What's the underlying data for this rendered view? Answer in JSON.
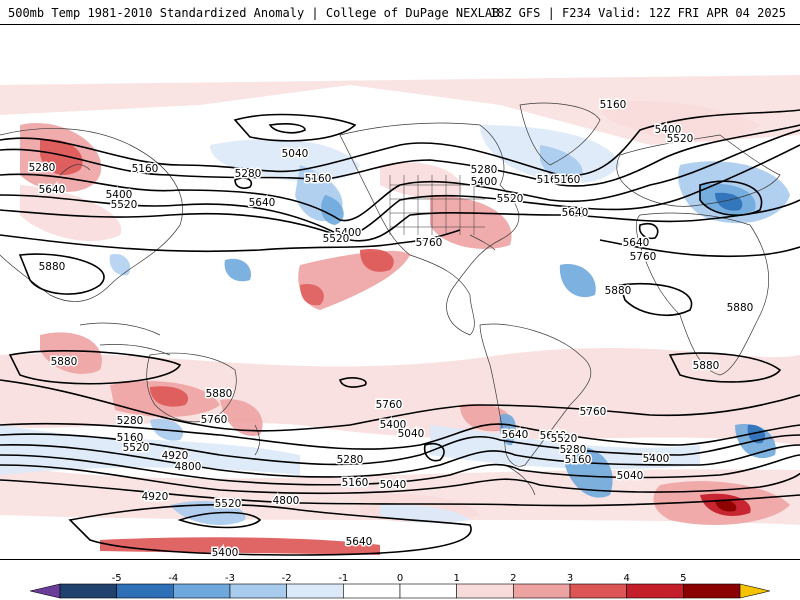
{
  "header": {
    "title_left": "500mb Temp 1981-2010 Standardized Anomaly | College of DuPage NEXLAB",
    "title_right": "18Z GFS | F234 Valid: 12Z FRI APR 04 2025"
  },
  "colors": {
    "contour": "#000000",
    "coast": "#3a3a3a",
    "scale": [
      "#6a3d9a",
      "#21416e",
      "#2d70b8",
      "#6fa8dc",
      "#a8cbee",
      "#dce9f8",
      "#ffffff",
      "#ffffff",
      "#f8dcdc",
      "#eea3a3",
      "#dd5555",
      "#c41e2a",
      "#8b0000",
      "#f5c300"
    ]
  },
  "colorbar": {
    "ticks": [
      "-5",
      "-4",
      "-3",
      "-2",
      "-1",
      "0",
      "1",
      "2",
      "3",
      "4",
      "5"
    ]
  },
  "contour_labels": [
    {
      "text": "5160"
    },
    {
      "text": "5400"
    },
    {
      "text": "5520"
    },
    {
      "text": "5160"
    },
    {
      "text": "5280"
    },
    {
      "text": "5640"
    },
    {
      "text": "5400"
    },
    {
      "text": "5520"
    },
    {
      "text": "5160"
    },
    {
      "text": "5040"
    },
    {
      "text": "5280"
    },
    {
      "text": "5160"
    },
    {
      "text": "5640"
    },
    {
      "text": "5400"
    },
    {
      "text": "5520"
    },
    {
      "text": "5760"
    },
    {
      "text": "5280"
    },
    {
      "text": "5400"
    },
    {
      "text": "5520"
    },
    {
      "text": "5640"
    },
    {
      "text": "5160"
    },
    {
      "text": "5640"
    },
    {
      "text": "5760"
    },
    {
      "text": "5880"
    },
    {
      "text": "5880"
    },
    {
      "text": "5880"
    },
    {
      "text": "5880"
    },
    {
      "text": "5880"
    },
    {
      "text": "5880"
    },
    {
      "text": "5760"
    },
    {
      "text": "5760"
    },
    {
      "text": "5760"
    },
    {
      "text": "5640"
    },
    {
      "text": "5280"
    },
    {
      "text": "5160"
    },
    {
      "text": "5520"
    },
    {
      "text": "5400"
    },
    {
      "text": "5040"
    },
    {
      "text": "4920"
    },
    {
      "text": "4800"
    },
    {
      "text": "4920"
    },
    {
      "text": "4800"
    },
    {
      "text": "5520"
    },
    {
      "text": "5400"
    },
    {
      "text": "5640"
    },
    {
      "text": "5280"
    },
    {
      "text": "5160"
    },
    {
      "text": "5040"
    },
    {
      "text": "5640"
    },
    {
      "text": "5520"
    },
    {
      "text": "5280"
    },
    {
      "text": "5160"
    },
    {
      "text": "5400"
    },
    {
      "text": "5040"
    }
  ]
}
